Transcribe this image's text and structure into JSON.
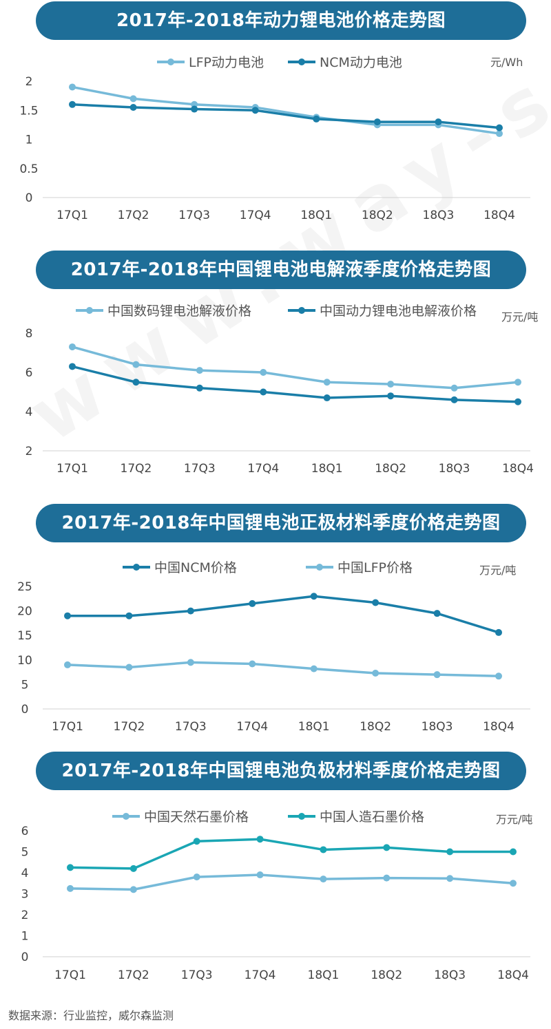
{
  "watermark": "www.way-s.cn",
  "source": "数据来源：行业监控，威尔森监测",
  "colors": {
    "light": "#76bad9",
    "dark": "#1a7ea8",
    "teal": "#1aa6b4",
    "banner": "#1e6e98"
  },
  "chart_data": [
    {
      "type": "line",
      "title": "2017年-2018年动力锂电池价格走势图",
      "unit": "元/Wh",
      "categories": [
        "17Q1",
        "17Q2",
        "17Q3",
        "17Q4",
        "18Q1",
        "18Q2",
        "18Q3",
        "18Q4"
      ],
      "yticks": [
        "0",
        "0.5",
        "1",
        "1.5",
        "2"
      ],
      "ylim": [
        0,
        2
      ],
      "legend_placement": "top",
      "grid": false,
      "series": [
        {
          "name": "LFP动力电池",
          "color": "#76bad9",
          "values": [
            1.9,
            1.7,
            1.6,
            1.55,
            1.38,
            1.25,
            1.25,
            1.1
          ]
        },
        {
          "name": "NCM动力电池",
          "color": "#1a7ea8",
          "values": [
            1.6,
            1.55,
            1.52,
            1.5,
            1.35,
            1.3,
            1.3,
            1.2
          ]
        }
      ]
    },
    {
      "type": "line",
      "title": "2017年-2018年中国锂电池电解液季度价格走势图",
      "unit": "万元/吨",
      "categories": [
        "17Q1",
        "17Q2",
        "17Q3",
        "17Q4",
        "18Q1",
        "18Q2",
        "18Q3",
        "18Q4"
      ],
      "yticks": [
        "2",
        "4",
        "6",
        "8"
      ],
      "ylim": [
        2,
        8
      ],
      "legend_placement": "top",
      "grid": false,
      "series": [
        {
          "name": "中国数码锂电池解液价格",
          "color": "#76bad9",
          "values": [
            7.3,
            6.4,
            6.1,
            6.0,
            5.5,
            5.4,
            5.2,
            5.5
          ]
        },
        {
          "name": "中国动力锂电池电解液价格",
          "color": "#1a7ea8",
          "values": [
            6.3,
            5.5,
            5.2,
            5.0,
            4.7,
            4.8,
            4.6,
            4.5
          ]
        }
      ]
    },
    {
      "type": "line",
      "title": "2017年-2018年中国锂电池正极材料季度价格走势图",
      "unit": "万元/吨",
      "categories": [
        "17Q1",
        "17Q2",
        "17Q3",
        "17Q4",
        "18Q1",
        "18Q2",
        "18Q3",
        "18Q4"
      ],
      "yticks": [
        "0",
        "5",
        "10",
        "15",
        "20",
        "25"
      ],
      "ylim": [
        0,
        25
      ],
      "legend_placement": "top",
      "grid": false,
      "series": [
        {
          "name": "中国NCM价格",
          "color": "#1a7ea8",
          "values": [
            19,
            19,
            20,
            21.5,
            23,
            21.7,
            19.5,
            15.6
          ]
        },
        {
          "name": "中国LFP价格",
          "color": "#76bad9",
          "values": [
            9,
            8.5,
            9.5,
            9.2,
            8.2,
            7.3,
            7.0,
            6.7
          ]
        }
      ]
    },
    {
      "type": "line",
      "title": "2017年-2018年中国锂电池负极材料季度价格走势图",
      "unit": "万元/吨",
      "categories": [
        "17Q1",
        "17Q2",
        "17Q3",
        "17Q4",
        "18Q1",
        "18Q2",
        "18Q3",
        "18Q4"
      ],
      "yticks": [
        "0",
        "1",
        "2",
        "3",
        "4",
        "5",
        "6"
      ],
      "ylim": [
        0,
        6
      ],
      "legend_placement": "top",
      "grid": false,
      "series": [
        {
          "name": "中国天然石墨价格",
          "color": "#76bad9",
          "values": [
            3.25,
            3.2,
            3.8,
            3.9,
            3.7,
            3.75,
            3.73,
            3.5
          ]
        },
        {
          "name": "中国人造石墨价格",
          "color": "#1aa6b4",
          "values": [
            4.25,
            4.2,
            5.5,
            5.6,
            5.1,
            5.2,
            5.0,
            5.0
          ]
        }
      ]
    }
  ]
}
